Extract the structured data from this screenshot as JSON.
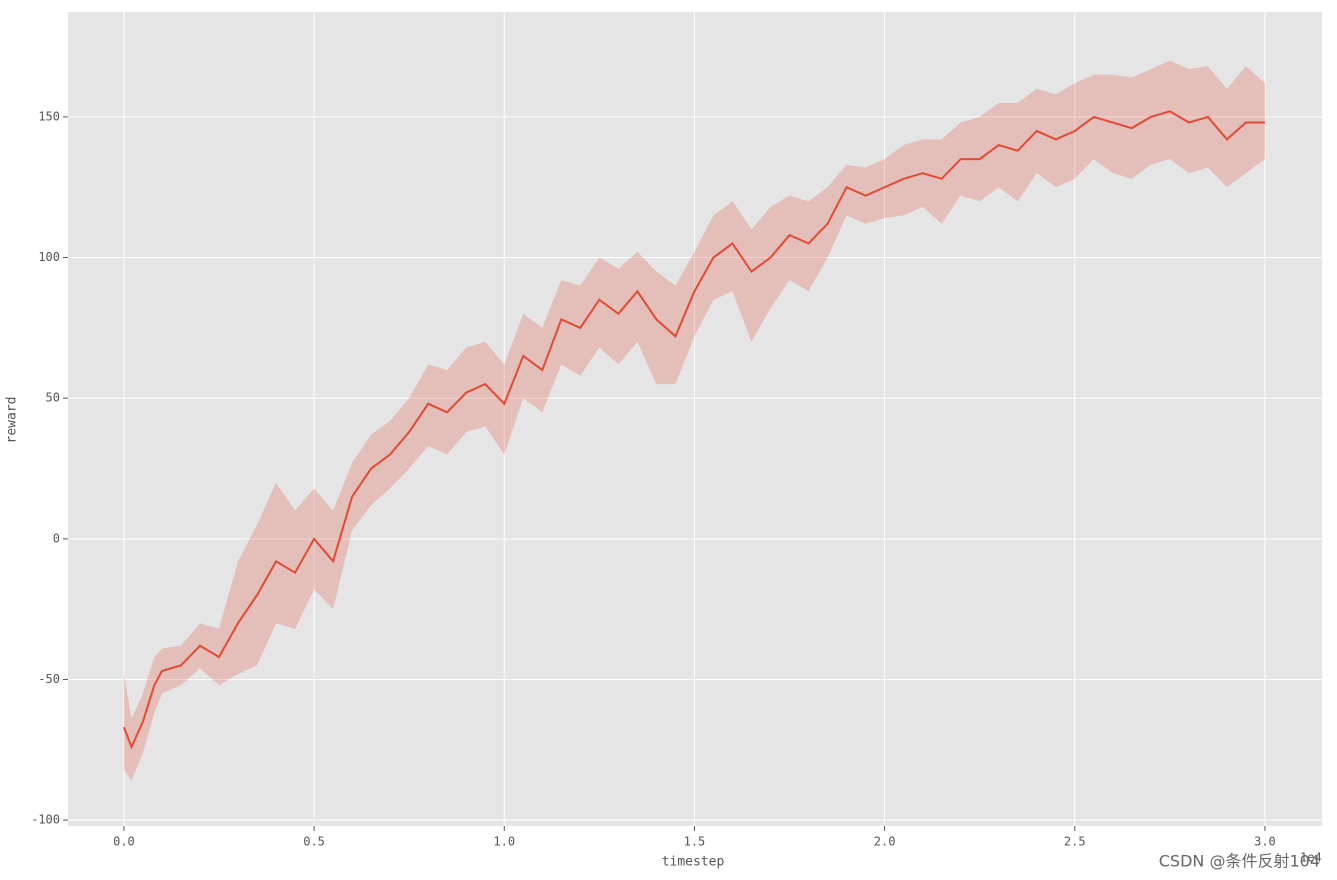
{
  "chart_data": {
    "type": "line",
    "x_label": "timestep",
    "y_label": "reward",
    "x_offset_label": "1e4",
    "watermark": "CSDN @条件反射104",
    "color": "#e24a33",
    "band_alpha": 0.25,
    "grid": true,
    "x": [
      0,
      0.02,
      0.05,
      0.08,
      0.1,
      0.15,
      0.2,
      0.25,
      0.3,
      0.35,
      0.4,
      0.45,
      0.5,
      0.55,
      0.6,
      0.65,
      0.7,
      0.75,
      0.8,
      0.85,
      0.9,
      0.95,
      1.0,
      1.05,
      1.1,
      1.15,
      1.2,
      1.25,
      1.3,
      1.35,
      1.4,
      1.45,
      1.5,
      1.55,
      1.6,
      1.65,
      1.7,
      1.75,
      1.8,
      1.85,
      1.9,
      1.95,
      2.0,
      2.05,
      2.1,
      2.15,
      2.2,
      2.25,
      2.3,
      2.35,
      2.4,
      2.45,
      2.5,
      2.55,
      2.6,
      2.65,
      2.7,
      2.75,
      2.8,
      2.85,
      2.9,
      2.95,
      3.0
    ],
    "values": [
      -67,
      -74,
      -65,
      -52,
      -47,
      -45,
      -38,
      -42,
      -30,
      -20,
      -8,
      -12,
      0,
      -8,
      15,
      25,
      30,
      38,
      48,
      45,
      52,
      55,
      48,
      65,
      60,
      78,
      75,
      85,
      80,
      88,
      78,
      72,
      88,
      100,
      105,
      95,
      100,
      108,
      105,
      112,
      125,
      122,
      125,
      128,
      130,
      128,
      135,
      135,
      140,
      138,
      145,
      142,
      145,
      150,
      148,
      146,
      150,
      152,
      148,
      150,
      142,
      148,
      148
    ],
    "lower": [
      -82,
      -86,
      -76,
      -62,
      -55,
      -52,
      -46,
      -52,
      -48,
      -45,
      -30,
      -32,
      -18,
      -25,
      3,
      12,
      18,
      25,
      33,
      30,
      38,
      40,
      30,
      50,
      45,
      62,
      58,
      68,
      62,
      70,
      55,
      55,
      72,
      85,
      88,
      70,
      82,
      92,
      88,
      100,
      115,
      112,
      114,
      115,
      118,
      112,
      122,
      120,
      125,
      120,
      130,
      125,
      128,
      135,
      130,
      128,
      133,
      135,
      130,
      132,
      125,
      130,
      135
    ],
    "upper": [
      -48,
      -64,
      -55,
      -42,
      -39,
      -38,
      -30,
      -32,
      -8,
      5,
      20,
      10,
      18,
      10,
      27,
      37,
      42,
      50,
      62,
      60,
      68,
      70,
      62,
      80,
      75,
      92,
      90,
      100,
      96,
      102,
      95,
      90,
      102,
      115,
      120,
      110,
      118,
      122,
      120,
      125,
      133,
      132,
      135,
      140,
      142,
      142,
      148,
      150,
      155,
      155,
      160,
      158,
      162,
      165,
      165,
      164,
      167,
      170,
      167,
      168,
      160,
      168,
      162
    ],
    "xlim": [
      -0.147,
      3.15
    ],
    "ylim": [
      -102.1,
      187.3
    ],
    "xticks": [
      {
        "value": 0,
        "label": "0.0"
      },
      0.5,
      {
        "value": 1,
        "label": "1.0"
      },
      1.5,
      {
        "value": 2,
        "label": "2.0"
      },
      2.5,
      {
        "value": 3,
        "label": "3.0"
      }
    ],
    "yticks": [
      -100,
      -50,
      0,
      50,
      100,
      150
    ]
  }
}
